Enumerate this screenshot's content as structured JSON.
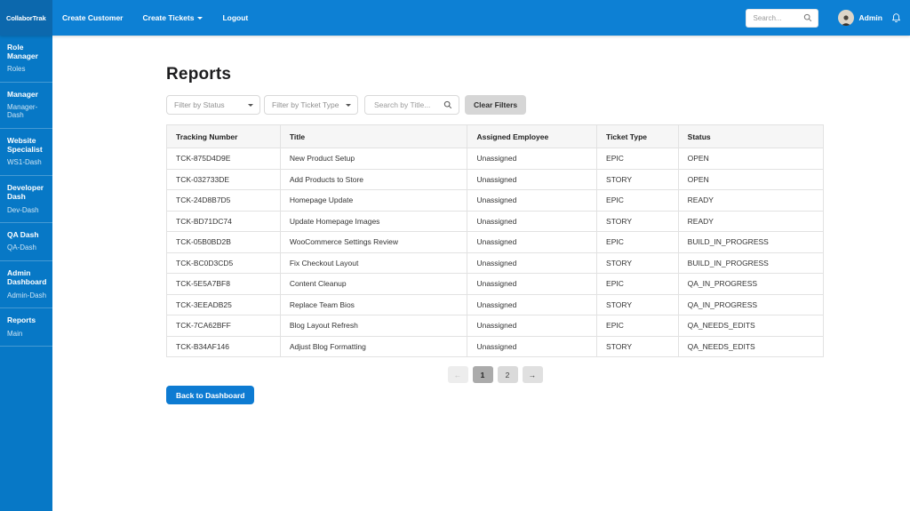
{
  "colors": {
    "navbar_bg": "#0d80d4",
    "brand_bg": "#0c68ad",
    "sidebar_bg": "#0778c6",
    "primary_button_bg": "#0d7bd2"
  },
  "icons": {
    "navbar_search": "magnifier",
    "title_search": "magnifier",
    "notifications": "bell",
    "nav_dropdown_caret": "caret-down",
    "filter_dropdown_caret": "caret-down",
    "user_avatar": "person-photo",
    "pagination_prev": "left-arrow",
    "pagination_next": "right-arrow"
  },
  "navbar": {
    "brand": "CollaborTrak",
    "links": [
      {
        "label": "Create Customer"
      },
      {
        "label": "Create Tickets",
        "has_caret": true
      },
      {
        "label": "Logout"
      }
    ],
    "search_placeholder": "Search...",
    "user": "Admin"
  },
  "sidebar": {
    "sections": [
      {
        "title": "Role Manager",
        "link": "Roles"
      },
      {
        "title": "Manager",
        "link": "Manager-Dash"
      },
      {
        "title": "Website Specialist",
        "link": "WS1-Dash"
      },
      {
        "title": "Developer Dash",
        "link": "Dev-Dash"
      },
      {
        "title": "QA Dash",
        "link": "QA-Dash"
      },
      {
        "title": "Admin Dashboard",
        "link": "Admin-Dash"
      },
      {
        "title": "Reports",
        "link": "Main"
      }
    ]
  },
  "main": {
    "title": "Reports",
    "filters": {
      "status_placeholder": "Filter by Status",
      "type_placeholder": "Filter by Ticket Type",
      "search_placeholder": "Search by Title...",
      "clear_button": "Clear Filters"
    },
    "table": {
      "columns": [
        "Tracking Number",
        "Title",
        "Assigned Employee",
        "Ticket Type",
        "Status"
      ],
      "rows": [
        [
          "TCK-875D4D9E",
          "New Product Setup",
          "Unassigned",
          "EPIC",
          "OPEN"
        ],
        [
          "TCK-032733DE",
          "Add Products to Store",
          "Unassigned",
          "STORY",
          "OPEN"
        ],
        [
          "TCK-24D8B7D5",
          "Homepage Update",
          "Unassigned",
          "EPIC",
          "READY"
        ],
        [
          "TCK-BD71DC74",
          "Update Homepage Images",
          "Unassigned",
          "STORY",
          "READY"
        ],
        [
          "TCK-05B0BD2B",
          "WooCommerce Settings Review",
          "Unassigned",
          "EPIC",
          "BUILD_IN_PROGRESS"
        ],
        [
          "TCK-BC0D3CD5",
          "Fix Checkout Layout",
          "Unassigned",
          "STORY",
          "BUILD_IN_PROGRESS"
        ],
        [
          "TCK-5E5A7BF8",
          "Content Cleanup",
          "Unassigned",
          "EPIC",
          "QA_IN_PROGRESS"
        ],
        [
          "TCK-3EEADB25",
          "Replace Team Bios",
          "Unassigned",
          "STORY",
          "QA_IN_PROGRESS"
        ],
        [
          "TCK-7CA62BFF",
          "Blog Layout Refresh",
          "Unassigned",
          "EPIC",
          "QA_NEEDS_EDITS"
        ],
        [
          "TCK-B34AF146",
          "Adjust Blog Formatting",
          "Unassigned",
          "STORY",
          "QA_NEEDS_EDITS"
        ]
      ]
    },
    "pagination": {
      "prev_label": "←",
      "pages": [
        "1",
        "2"
      ],
      "active_page": "1",
      "next_label": "→"
    },
    "back_button": "Back to Dashboard"
  }
}
